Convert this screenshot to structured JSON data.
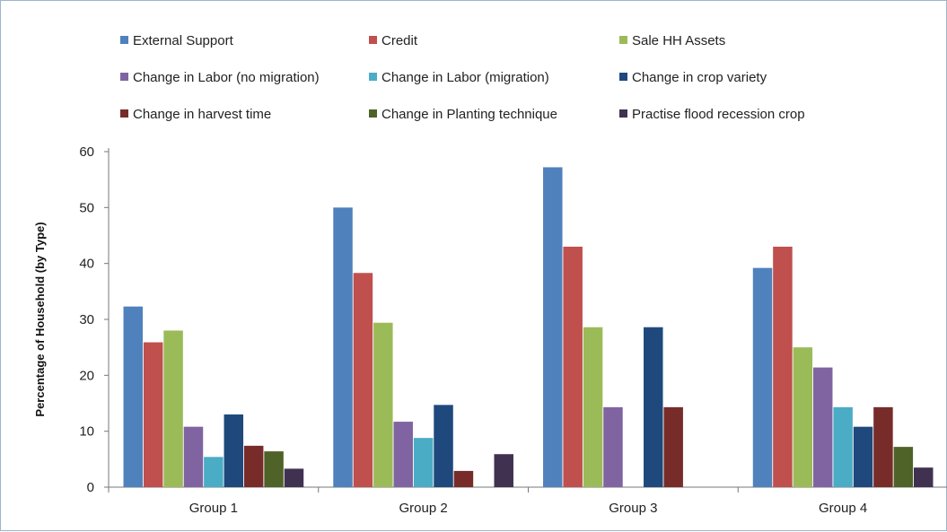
{
  "chart_data": {
    "type": "bar",
    "title": "",
    "xlabel": "",
    "ylabel": "Percentage of Household (by Type)",
    "ylim": [
      0,
      60
    ],
    "yticks": [
      0,
      10,
      20,
      30,
      40,
      50,
      60
    ],
    "grid": false,
    "legend_position": "top",
    "categories": [
      "Group 1",
      "Group 2",
      "Group 3",
      "Group 4"
    ],
    "series": [
      {
        "name": "External Support",
        "color": "#4f81bd",
        "values": [
          32.3,
          50.0,
          57.2,
          39.2
        ]
      },
      {
        "name": "Credit",
        "color": "#c0504d",
        "values": [
          25.9,
          38.3,
          43.0,
          43.0
        ]
      },
      {
        "name": "Sale HH Assets",
        "color": "#9bbb59",
        "values": [
          28.0,
          29.4,
          28.6,
          25.0
        ]
      },
      {
        "name": "Change in Labor (no migration)",
        "color": "#8064a2",
        "values": [
          10.8,
          11.7,
          14.3,
          21.4
        ]
      },
      {
        "name": "Change in Labor (migration)",
        "color": "#4bacc6",
        "values": [
          5.4,
          8.8,
          0,
          14.3
        ]
      },
      {
        "name": "Change in crop variety",
        "color": "#1f497d",
        "values": [
          13.0,
          14.7,
          28.6,
          10.8
        ]
      },
      {
        "name": "Change in harvest time",
        "color": "#772c2a",
        "values": [
          7.4,
          2.9,
          14.3,
          14.3
        ]
      },
      {
        "name": "Change in Planting technique",
        "color": "#4f6228",
        "values": [
          6.4,
          0,
          0,
          7.2
        ]
      },
      {
        "name": "Practise flood recession crop",
        "color": "#403151",
        "values": [
          3.3,
          5.9,
          0,
          3.5
        ]
      }
    ]
  }
}
